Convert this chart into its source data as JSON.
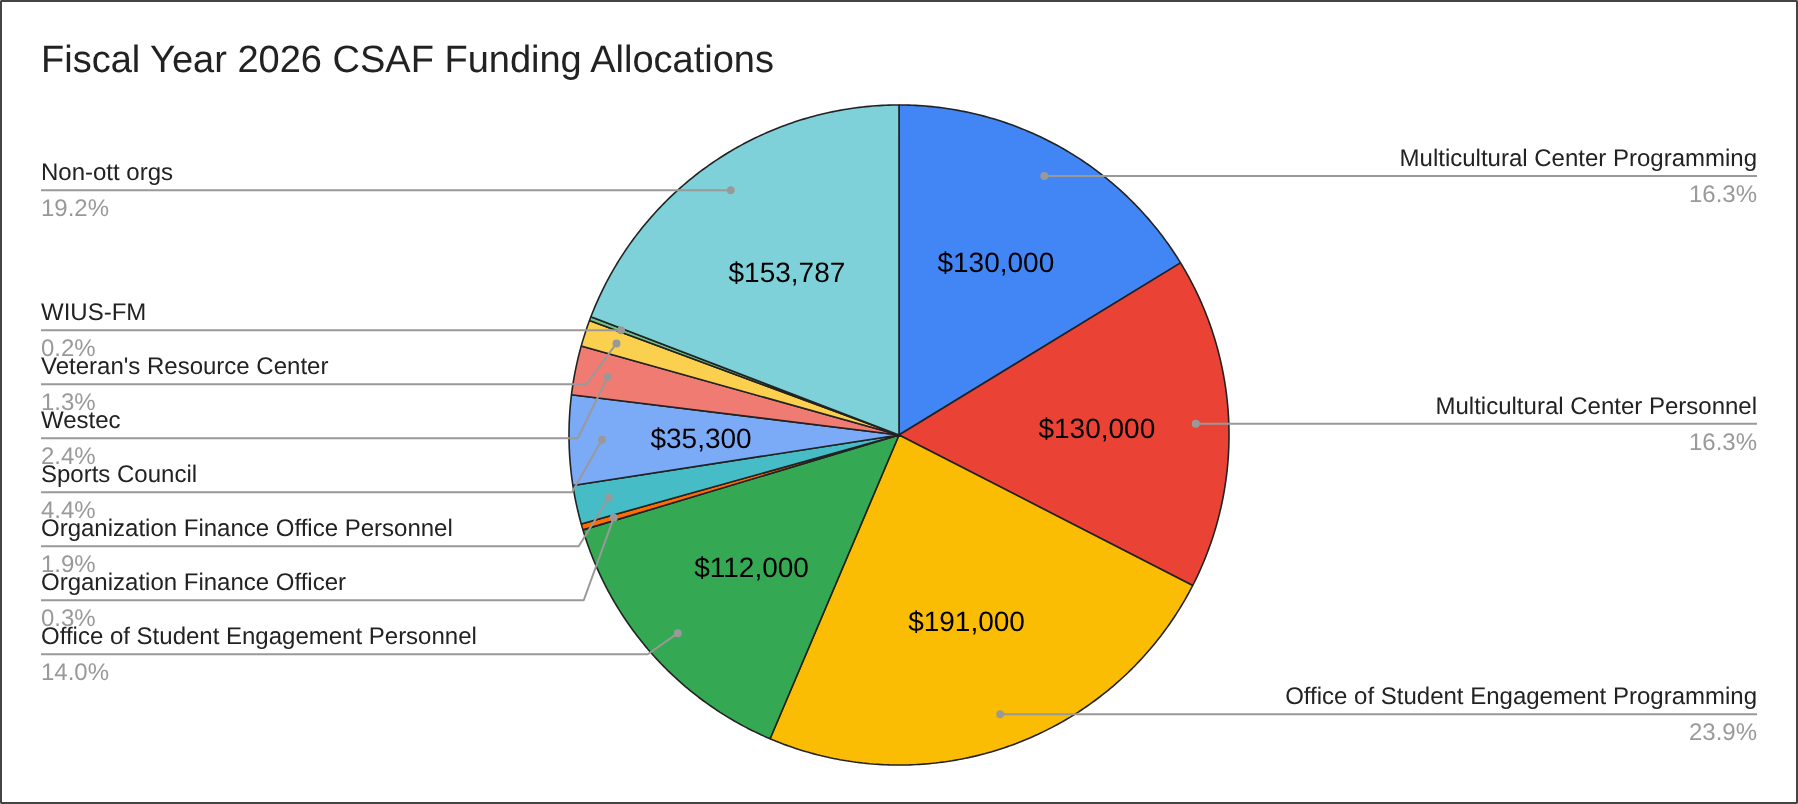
{
  "chart_data": {
    "type": "pie",
    "title": "Fiscal Year 2026 CSAF Funding Allocations",
    "categories": [
      "Multicultural Center Programming",
      "Multicultural Center Personnel",
      "Office of Student Engagement Programming",
      "Office of Student Engagement Personnel",
      "Organization Finance Officer",
      "Organization Finance Office Personnel",
      "Sports Council",
      "Westec",
      "Veteran's Resource Center",
      "WIUS-FM",
      "Non-ott orgs"
    ],
    "values": [
      16.3,
      16.3,
      23.9,
      14.0,
      0.3,
      1.9,
      4.4,
      2.4,
      1.3,
      0.2,
      19.2
    ],
    "value_labels": [
      "16.3%",
      "16.3%",
      "23.9%",
      "14.0%",
      "0.3%",
      "1.9%",
      "4.4%",
      "2.4%",
      "1.3%",
      "0.2%",
      "19.2%"
    ],
    "colors": [
      "#4285f4",
      "#ea4335",
      "#fbbc04",
      "#34a853",
      "#ff6d01",
      "#46bdc6",
      "#7baaf7",
      "#f07b72",
      "#fcd04f",
      "#71c287",
      "#7fd1d9"
    ],
    "annotations": [
      {
        "text": "$130,000",
        "x": "Multicultural Center Programming"
      },
      {
        "text": "$130,000",
        "x": "Multicultural Center Personnel"
      },
      {
        "text": "$191,000",
        "x": "Office of Student Engagement Programming"
      },
      {
        "text": "$112,000",
        "x": "Office of Student Engagement Personnel"
      },
      {
        "text": "$35,300",
        "x": "Sports Council"
      },
      {
        "text": "$153,787",
        "x": "Non-ott orgs"
      }
    ]
  }
}
